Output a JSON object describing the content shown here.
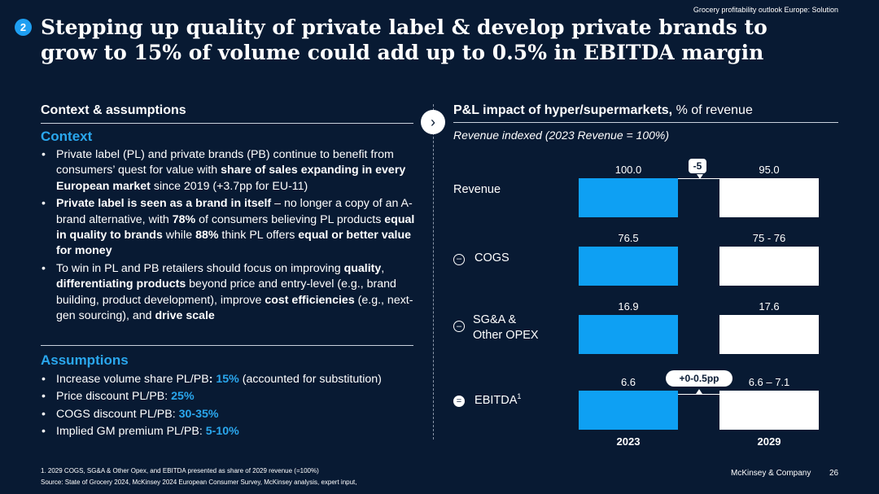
{
  "header": {
    "top_note": "Grocery profitability outlook Europe: Solution",
    "badge": "2",
    "title_line1": "Stepping up quality of private label & develop private brands to",
    "title_line2": "grow to 15% of volume could add up to 0.5% in EBITDA margin"
  },
  "left": {
    "heading": "Context & assumptions",
    "context_title": "Context",
    "context_bullets": [
      [
        {
          "t": "Private label (PL) and private brands (PB) continue to benefit from consumers’ quest for value with "
        },
        {
          "t": "share of sales expanding in every European market",
          "b": true
        },
        {
          "t": " since 2019 (+3.7pp for EU-11)"
        }
      ],
      [
        {
          "t": "Private label is seen as a brand in itself",
          "b": true
        },
        {
          "t": " – no longer a copy of an A-brand alternative, with "
        },
        {
          "t": "78%",
          "b": true
        },
        {
          "t": " of consumers believing PL products "
        },
        {
          "t": "equal in quality to brands",
          "b": true
        },
        {
          "t": " while "
        },
        {
          "t": "88%",
          "b": true
        },
        {
          "t": " think PL offers "
        },
        {
          "t": "equal or better value for money",
          "b": true
        }
      ],
      [
        {
          "t": "To win in PL and PB retailers should focus on improving "
        },
        {
          "t": "quality",
          "b": true
        },
        {
          "t": ", "
        },
        {
          "t": "differentiating products",
          "b": true
        },
        {
          "t": " beyond price and entry-level (e.g., brand building, product development), improve "
        },
        {
          "t": "cost efficiencies",
          "b": true
        },
        {
          "t": " (e.g., next-gen sourcing), and "
        },
        {
          "t": "drive scale",
          "b": true
        }
      ]
    ],
    "assumptions_title": "Assumptions",
    "assumptions": [
      {
        "label": "Increase volume share PL/PB:",
        "value": "15%",
        "note": " (accounted for substitution)",
        "bold_colon": true
      },
      {
        "label": "Price discount PL/PB:",
        "value": "25%",
        "note": ""
      },
      {
        "label": "COGS discount PL/PB:",
        "value": "30-35%",
        "note": ""
      },
      {
        "label": "Implied GM premium PL/PB:",
        "value": "5-10%",
        "note": ""
      }
    ]
  },
  "right": {
    "heading_bold": "P&L impact of hyper/supermarkets,",
    "heading_rest": " % of revenue",
    "subtitle": "Revenue indexed (2023 Revenue = 100%)",
    "rows": {
      "revenue": "Revenue",
      "cogs_op": "–",
      "cogs": "COGS",
      "sga_op": "–",
      "sga_line1": "SG&A &",
      "sga_line2": "Other OPEX",
      "ebitda_op": "=",
      "ebitda": "EBITDA",
      "ebitda_sup": "1"
    },
    "revenue_delta": "-5",
    "ebitda_delta": "+0-0.5pp",
    "years": [
      "2023",
      "2029"
    ]
  },
  "chart_data": {
    "type": "bar",
    "title": "P&L impact of hyper/supermarkets, % of revenue",
    "subtitle": "Revenue indexed (2023 Revenue = 100%)",
    "categories": [
      "2023",
      "2029"
    ],
    "series": [
      {
        "name": "Revenue",
        "values": [
          100.0,
          95.0
        ],
        "labels": [
          "100.0",
          "95.0"
        ]
      },
      {
        "name": "COGS",
        "values": [
          76.5,
          75.5
        ],
        "labels": [
          "76.5",
          "75 - 76"
        ]
      },
      {
        "name": "SG&A & Other OPEX",
        "values": [
          16.9,
          17.6
        ],
        "labels": [
          "16.9",
          "17.6"
        ]
      },
      {
        "name": "EBITDA",
        "values": [
          6.6,
          6.85
        ],
        "labels": [
          "6.6",
          "6.6 – 7.1"
        ]
      }
    ],
    "annotations": [
      "-5",
      "+0-0.5pp"
    ],
    "colors": {
      "2023": "#0ea0f3",
      "2029": "#ffffff"
    }
  },
  "footer": {
    "footnote": "1.    2029 COGS, SG&A & Other Opex, and EBITDA presented as share of 2029 revenue (=100%)",
    "source": "Source: State of Grocery 2024, McKinsey 2024 European Consumer Survey, McKinsey analysis, expert input,",
    "brand": "McKinsey & Company",
    "page": "26"
  }
}
